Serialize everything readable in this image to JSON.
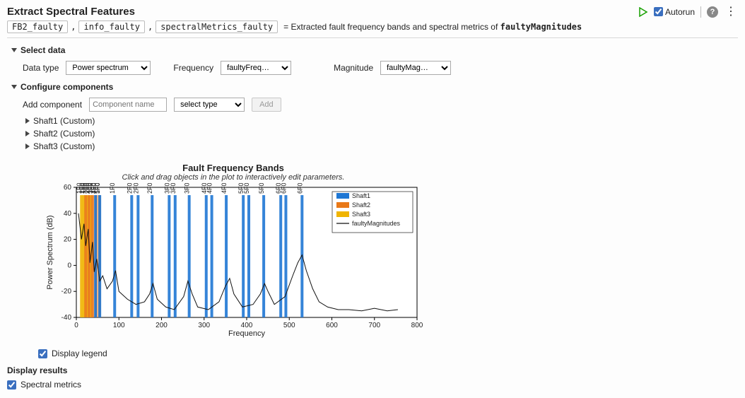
{
  "title": "Extract Spectral Features",
  "header": {
    "autorun_label": "Autorun",
    "autorun_checked": true
  },
  "outputs": {
    "vars": [
      "FB2_faulty",
      "info_faulty",
      "spectralMetrics_faulty"
    ],
    "desc_prefix": "=  Extracted fault frequency bands and spectral metrics of ",
    "desc_var": "faultyMagnitudes"
  },
  "select_data": {
    "header": "Select data",
    "data_type_label": "Data type",
    "data_type_value": "Power spectrum",
    "frequency_label": "Frequency",
    "frequency_value": "faultyFreq…",
    "magnitude_label": "Magnitude",
    "magnitude_value": "faultyMag…"
  },
  "configure": {
    "header": "Configure components",
    "add_label": "Add component",
    "component_name_placeholder": "Component name",
    "select_type_value": "select type",
    "add_btn": "Add",
    "items": [
      "Shaft1 (Custom)",
      "Shaft2 (Custom)",
      "Shaft3 (Custom)"
    ]
  },
  "chart": {
    "title": "Fault Frequency Bands",
    "subtitle": "Click and drag objects in the plot to interactively edit parameters.",
    "xlabel": "Frequency",
    "ylabel": "Power Spectrum (dB)",
    "xlim": [
      0,
      800
    ],
    "xtick_step": 100,
    "ylim": [
      -40,
      60
    ],
    "ytick_step": 20,
    "grid_color": "#d9d9d9",
    "background_color": "#ffffff",
    "axis_color": "#000000",
    "label_fontsize": 11,
    "colors": {
      "shaft1": "#1f77d4",
      "shaft2": "#e97817",
      "shaft3": "#f0b400",
      "signal": "#111111"
    },
    "bars_shaft1": [
      {
        "x": 45,
        "label": "1F0-1F1"
      },
      {
        "x": 55,
        "label": "1F0+1F1"
      },
      {
        "x": 90,
        "label": "1F0"
      },
      {
        "x": 130,
        "label": "2F0-1F1"
      },
      {
        "x": 145,
        "label": "2F0+1F1"
      },
      {
        "x": 178,
        "label": "2F0"
      },
      {
        "x": 218,
        "label": "3F0-1F1"
      },
      {
        "x": 232,
        "label": "3F0+1F1"
      },
      {
        "x": 265,
        "label": "3F0"
      },
      {
        "x": 305,
        "label": "4F0-1F1"
      },
      {
        "x": 318,
        "label": "4F0+1F1"
      },
      {
        "x": 352,
        "label": "4F0"
      },
      {
        "x": 392,
        "label": "5F0-1F1"
      },
      {
        "x": 405,
        "label": "5F0+1F1"
      },
      {
        "x": 440,
        "label": "5F0"
      },
      {
        "x": 480,
        "label": "6F0-1F1"
      },
      {
        "x": 492,
        "label": "6F0+1F1"
      },
      {
        "x": 530,
        "label": "6F0"
      }
    ],
    "bars_shaft2": [
      {
        "x": 22,
        "label": "1F0"
      },
      {
        "x": 30,
        "label": "2F0"
      },
      {
        "x": 38,
        "label": "3F0"
      },
      {
        "x": 46,
        "label": "4F0"
      },
      {
        "x": 54,
        "label": "5F0"
      }
    ],
    "bars_shaft3": [
      {
        "x": 12,
        "label": "1F0"
      },
      {
        "x": 18,
        "label": "2F0"
      },
      {
        "x": 26,
        "label": "3F0"
      },
      {
        "x": 34,
        "label": "4F0"
      }
    ],
    "signal_points": [
      [
        5,
        40
      ],
      [
        12,
        20
      ],
      [
        18,
        32
      ],
      [
        22,
        15
      ],
      [
        28,
        28
      ],
      [
        32,
        2
      ],
      [
        38,
        18
      ],
      [
        42,
        -5
      ],
      [
        48,
        5
      ],
      [
        55,
        -12
      ],
      [
        62,
        -8
      ],
      [
        72,
        -18
      ],
      [
        85,
        -12
      ],
      [
        92,
        -4
      ],
      [
        100,
        -20
      ],
      [
        120,
        -26
      ],
      [
        140,
        -30
      ],
      [
        160,
        -28
      ],
      [
        172,
        -22
      ],
      [
        180,
        -14
      ],
      [
        190,
        -26
      ],
      [
        210,
        -32
      ],
      [
        230,
        -34
      ],
      [
        252,
        -24
      ],
      [
        262,
        -12
      ],
      [
        272,
        -22
      ],
      [
        285,
        -32
      ],
      [
        310,
        -34
      ],
      [
        335,
        -28
      ],
      [
        350,
        -16
      ],
      [
        360,
        -10
      ],
      [
        370,
        -22
      ],
      [
        390,
        -32
      ],
      [
        415,
        -30
      ],
      [
        432,
        -22
      ],
      [
        442,
        -14
      ],
      [
        450,
        -20
      ],
      [
        465,
        -30
      ],
      [
        490,
        -24
      ],
      [
        508,
        -8
      ],
      [
        520,
        2
      ],
      [
        530,
        8
      ],
      [
        540,
        -4
      ],
      [
        555,
        -18
      ],
      [
        570,
        -28
      ],
      [
        590,
        -32
      ],
      [
        615,
        -34
      ],
      [
        640,
        -34
      ],
      [
        670,
        -35
      ],
      [
        700,
        -33
      ],
      [
        730,
        -35
      ],
      [
        755,
        -34
      ]
    ],
    "legend": {
      "items": [
        {
          "label": "Shaft1",
          "type": "box",
          "colorKey": "shaft1"
        },
        {
          "label": "Shaft2",
          "type": "box",
          "colorKey": "shaft2"
        },
        {
          "label": "Shaft3",
          "type": "box",
          "colorKey": "shaft3"
        },
        {
          "label": "faultyMagnitudes",
          "type": "line",
          "colorKey": "signal"
        }
      ]
    }
  },
  "below_chart": {
    "display_legend_label": "Display legend",
    "display_legend_checked": true
  },
  "results": {
    "header": "Display results",
    "spectral_metrics_label": "Spectral metrics",
    "spectral_metrics_checked": true
  }
}
